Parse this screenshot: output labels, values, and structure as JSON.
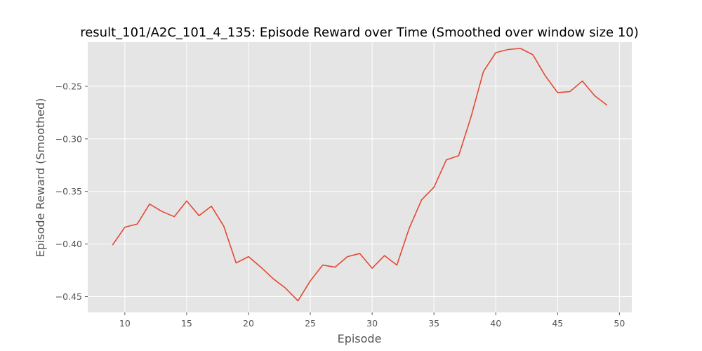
{
  "chart_data": {
    "type": "line",
    "title": "result_101/A2C_101_4_135: Episode Reward over Time (Smoothed over window size 10)",
    "xlabel": "Episode",
    "ylabel": "Episode Reward (Smoothed)",
    "xlim": [
      7,
      51
    ],
    "ylim": [
      -0.465,
      -0.208
    ],
    "xticks": [
      10,
      15,
      20,
      25,
      30,
      35,
      40,
      45,
      50
    ],
    "yticks": [
      -0.45,
      -0.4,
      -0.35,
      -0.3,
      -0.25
    ],
    "ytick_labels": [
      "−0.45",
      "−0.40",
      "−0.35",
      "−0.30",
      "−0.25"
    ],
    "grid": true,
    "background": "#E5E5E5",
    "grid_color": "#FFFFFF",
    "series": [
      {
        "color": "#E24A33",
        "x": [
          9,
          10,
          11,
          12,
          13,
          14,
          15,
          16,
          17,
          18,
          19,
          20,
          21,
          22,
          23,
          24,
          25,
          26,
          27,
          28,
          29,
          30,
          31,
          32,
          33,
          34,
          35,
          36,
          37,
          38,
          39,
          40,
          41,
          42,
          43,
          44,
          45,
          46,
          47,
          48,
          49
        ],
        "y": [
          -0.401,
          -0.384,
          -0.381,
          -0.362,
          -0.369,
          -0.374,
          -0.359,
          -0.373,
          -0.364,
          -0.383,
          -0.418,
          -0.412,
          -0.422,
          -0.433,
          -0.442,
          -0.454,
          -0.435,
          -0.42,
          -0.422,
          -0.412,
          -0.409,
          -0.423,
          -0.411,
          -0.42,
          -0.385,
          -0.358,
          -0.346,
          -0.32,
          -0.316,
          -0.279,
          -0.236,
          -0.218,
          -0.215,
          -0.214,
          -0.22,
          -0.24,
          -0.256,
          -0.255,
          -0.245,
          -0.259,
          -0.268
        ]
      }
    ]
  }
}
